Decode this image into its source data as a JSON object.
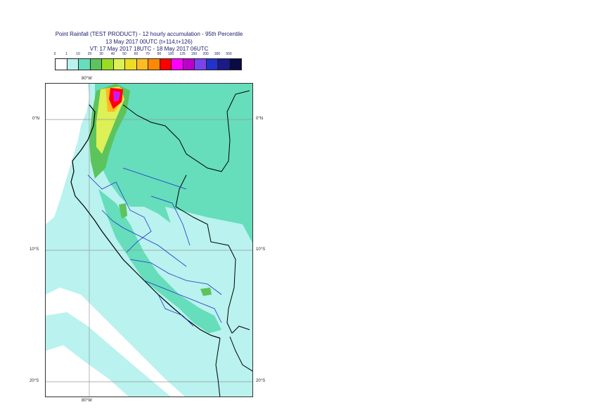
{
  "title": {
    "line1": "Point Rainfall (TEST PRODUCT) - 12 hourly accumulation - 95th Percentile",
    "line2": "13 May 2017 00UTC (t+114,t+126)",
    "line3": "VT: 17 May 2017 18UTC - 18 May 2017 06UTC"
  },
  "legend": {
    "thresholds": [
      "0",
      "1",
      "10",
      "20",
      "30",
      "40",
      "50",
      "60",
      "70",
      "80",
      "100",
      "125",
      "150",
      "200",
      "300",
      "500"
    ],
    "colors": [
      "#ffffff",
      "#b9f2ee",
      "#66ddbb",
      "#5cc45c",
      "#99dd22",
      "#ddf055",
      "#eedd22",
      "#ffbb22",
      "#ff8800",
      "#ff0000",
      "#ff00ff",
      "#bb00cc",
      "#7744ee",
      "#2233cc",
      "#1a1a88",
      "#0a0a44"
    ]
  },
  "map": {
    "lon_labels": {
      "top": "80°W",
      "bottom": "80°W"
    },
    "lat_labels": {
      "eq_left": "0°N",
      "eq_right": "0°N",
      "s10_left": "10°S",
      "s10_right": "10°S",
      "s20_left": "20°S",
      "s20_right": "20°S"
    },
    "colors": {
      "ocean_low": "#b9f2ee",
      "ocean_none": "#ffffff",
      "land_moderate": "#66ddbb",
      "border_country": "#000000",
      "border_region": "#2233cc",
      "gridline": "#999999"
    }
  }
}
